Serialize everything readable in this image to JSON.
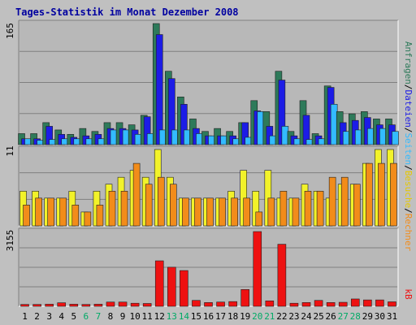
{
  "chart_data": {
    "type": "bar",
    "title": "Tages-Statistik im Monat Dezember 2008",
    "categories": [
      "1",
      "2",
      "3",
      "4",
      "5",
      "6",
      "7",
      "8",
      "9",
      "10",
      "11",
      "12",
      "13",
      "14",
      "15",
      "16",
      "17",
      "18",
      "19",
      "20",
      "21",
      "22",
      "23",
      "24",
      "25",
      "26",
      "27",
      "28",
      "29",
      "30",
      "31"
    ],
    "weekend_days": [
      "6",
      "7",
      "13",
      "14",
      "20",
      "21",
      "27",
      "28"
    ],
    "panels": [
      {
        "name": "top",
        "ymax_label": "165",
        "ylim": [
          0,
          165
        ],
        "series": [
          {
            "name": "Anfragen",
            "color": "#2e7a5a",
            "values": [
              15,
              15,
              30,
              20,
              14,
              22,
              18,
              30,
              30,
              27,
              40,
              165,
              100,
              65,
              35,
              18,
              22,
              18,
              30,
              60,
              45,
              100,
              18,
              60,
              15,
              80,
              45,
              42,
              45,
              35,
              35
            ]
          },
          {
            "name": "Dateien",
            "color": "#1c1ce6",
            "values": [
              8,
              8,
              25,
              14,
              10,
              12,
              14,
              22,
              22,
              20,
              38,
              150,
              90,
              55,
              22,
              12,
              12,
              12,
              30,
              46,
              25,
              88,
              12,
              40,
              12,
              78,
              30,
              33,
              37,
              27,
              27
            ]
          },
          {
            "name": "Seiten",
            "color": "#33bbff",
            "values": [
              8,
              6,
              7,
              8,
              8,
              8,
              8,
              20,
              20,
              14,
              15,
              20,
              20,
              20,
              15,
              12,
              12,
              8,
              10,
              45,
              12,
              25,
              8,
              7,
              8,
              55,
              18,
              20,
              22,
              22,
              18
            ]
          }
        ]
      },
      {
        "name": "middle",
        "ymax_label": "11",
        "ylim": [
          0,
          11
        ],
        "series": [
          {
            "name": "Besuche",
            "color": "#f2f22a",
            "values": [
              5,
              5,
              4,
              4,
              5,
              2,
              5,
              6,
              7,
              8,
              7,
              11,
              7,
              4,
              4,
              4,
              4,
              5,
              8,
              5,
              8,
              4,
              4,
              6,
              5,
              4,
              6,
              6,
              9,
              11,
              11
            ]
          },
          {
            "name": "Rechner",
            "color": "#f28c1a",
            "values": [
              3,
              4,
              4,
              4,
              3,
              2,
              3,
              5,
              5,
              9,
              6,
              7,
              6,
              4,
              4,
              4,
              4,
              4,
              4,
              2,
              4,
              5,
              4,
              5,
              5,
              7,
              7,
              6,
              9,
              9,
              9
            ]
          }
        ]
      },
      {
        "name": "bottom",
        "ymax_label": "3155",
        "ylim": [
          0,
          3155
        ],
        "series": [
          {
            "name": "kB",
            "color": "#ee1111",
            "values": [
              80,
              80,
              90,
              150,
              90,
              80,
              90,
              180,
              180,
              130,
              120,
              1920,
              1650,
              1510,
              250,
              160,
              180,
              200,
              710,
              3155,
              230,
              2620,
              130,
              160,
              250,
              160,
              170,
              310,
              270,
              270,
              190
            ]
          }
        ]
      }
    ],
    "right_legend": [
      {
        "text": "Anfragen",
        "color": "#2e7a5a"
      },
      {
        "text": "/",
        "color": "#000000"
      },
      {
        "text": "Dateien",
        "color": "#1c1ce6"
      },
      {
        "text": "/",
        "color": "#000000"
      },
      {
        "text": "Seiten",
        "color": "#33bbff"
      },
      {
        "text": "/",
        "color": "#000000"
      },
      {
        "text": "Besuche",
        "color": "#e6c800"
      },
      {
        "text": "/",
        "color": "#000000"
      },
      {
        "text": "Rechner",
        "color": "#f28c1a"
      },
      {
        "text": "kB",
        "color": "#ee1111"
      }
    ],
    "colors": {
      "background": "#c0c0c0",
      "panel": "#b8b8b8",
      "grid": "#808080",
      "title": "#0000a0",
      "weekend": "#00aa66"
    }
  }
}
